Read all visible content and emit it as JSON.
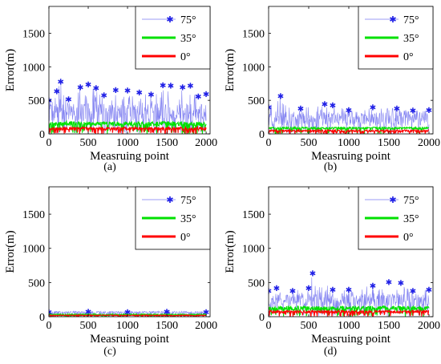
{
  "colors": {
    "series_75": "#1f1fe6",
    "series_35": "#00e000",
    "series_0": "#ff0000",
    "axis": "#000000",
    "legend_border": "#000000"
  },
  "chart_data": [
    {
      "type": "line",
      "panel_label": "(a)",
      "xlabel": "Measruing point",
      "ylabel": "Error(m)",
      "xlim": [
        0,
        2050
      ],
      "ylim": [
        0,
        1900
      ],
      "xticks": [
        0,
        500,
        1000,
        1500,
        2000
      ],
      "yticks": [
        0,
        500,
        1000,
        1500
      ],
      "legend": {
        "placement": "top-right",
        "entries": [
          "75°",
          "35°",
          "0°"
        ]
      },
      "series": [
        {
          "name": "75°",
          "marker": "star",
          "range": [
            0,
            800
          ],
          "typical": [
            180,
            450
          ],
          "x": [
            0,
            100,
            150,
            250,
            400,
            500,
            600,
            700,
            850,
            1000,
            1150,
            1300,
            1450,
            1550,
            1700,
            1800,
            1900,
            2000
          ],
          "y": [
            500,
            640,
            780,
            520,
            700,
            740,
            690,
            580,
            660,
            650,
            620,
            590,
            730,
            720,
            700,
            720,
            560,
            600
          ]
        },
        {
          "name": "35°",
          "range": [
            0,
            240
          ],
          "typical": [
            120,
            180
          ],
          "x": [
            0,
            250,
            500,
            750,
            1000,
            1250,
            1500,
            1750,
            2000
          ],
          "y": [
            140,
            200,
            160,
            170,
            150,
            165,
            190,
            160,
            155
          ]
        },
        {
          "name": "0°",
          "range": [
            0,
            120
          ],
          "typical": [
            50,
            100
          ],
          "x": [
            0,
            500,
            1000,
            1500,
            2000
          ],
          "y": [
            90,
            95,
            90,
            95,
            90
          ]
        }
      ]
    },
    {
      "type": "line",
      "panel_label": "(b)",
      "xlabel": "Measruing point",
      "ylabel": "Error(m)",
      "xlim": [
        0,
        2050
      ],
      "ylim": [
        0,
        1900
      ],
      "xticks": [
        0,
        500,
        1000,
        1500,
        2000
      ],
      "yticks": [
        0,
        500,
        1000,
        1500
      ],
      "legend": {
        "placement": "top-right",
        "entries": [
          "75°",
          "35°",
          "0°"
        ]
      },
      "series": [
        {
          "name": "75°",
          "marker": "star",
          "range": [
            0,
            580
          ],
          "typical": [
            120,
            330
          ],
          "x": [
            0,
            150,
            400,
            700,
            800,
            1000,
            1300,
            1600,
            1800,
            2000
          ],
          "y": [
            400,
            570,
            380,
            450,
            430,
            360,
            400,
            380,
            350,
            360
          ]
        },
        {
          "name": "35°",
          "range": [
            0,
            110
          ],
          "typical": [
            70,
            100
          ],
          "x": [
            0,
            500,
            1000,
            1500,
            2000
          ],
          "y": [
            90,
            95,
            85,
            90,
            90
          ]
        },
        {
          "name": "0°",
          "range": [
            0,
            70
          ],
          "typical": [
            30,
            60
          ],
          "x": [
            0,
            500,
            1000,
            1500,
            2000
          ],
          "y": [
            50,
            50,
            50,
            50,
            50
          ]
        }
      ]
    },
    {
      "type": "line",
      "panel_label": "(c)",
      "xlabel": "Measruing point",
      "ylabel": "Error(m)",
      "xlim": [
        0,
        2050
      ],
      "ylim": [
        0,
        1900
      ],
      "xticks": [
        0,
        500,
        1000,
        1500,
        2000
      ],
      "yticks": [
        0,
        500,
        1000,
        1500
      ],
      "legend": {
        "placement": "top-right",
        "entries": [
          "75°",
          "35°",
          "0°"
        ]
      },
      "series": [
        {
          "name": "75°",
          "marker": "star",
          "range": [
            0,
            100
          ],
          "typical": [
            40,
            80
          ],
          "x": [
            0,
            500,
            1000,
            1500,
            2000
          ],
          "y": [
            70,
            75,
            70,
            75,
            70
          ]
        },
        {
          "name": "35°",
          "range": [
            0,
            50
          ],
          "typical": [
            25,
            40
          ],
          "x": [
            0,
            500,
            1000,
            1500,
            2000
          ],
          "y": [
            35,
            35,
            35,
            35,
            35
          ]
        },
        {
          "name": "0°",
          "range": [
            0,
            30
          ],
          "typical": [
            15,
            25
          ],
          "x": [
            0,
            500,
            1000,
            1500,
            2000
          ],
          "y": [
            20,
            20,
            20,
            20,
            20
          ]
        }
      ]
    },
    {
      "type": "line",
      "panel_label": "(d)",
      "xlabel": "Measruing point",
      "ylabel": "Error(m)",
      "xlim": [
        0,
        2050
      ],
      "ylim": [
        0,
        1900
      ],
      "xticks": [
        0,
        500,
        1000,
        1500,
        2000
      ],
      "yticks": [
        0,
        500,
        1000,
        1500
      ],
      "legend": {
        "placement": "top-right",
        "entries": [
          "75°",
          "35°",
          "0°"
        ]
      },
      "series": [
        {
          "name": "75°",
          "marker": "star",
          "range": [
            0,
            650
          ],
          "typical": [
            150,
            330
          ],
          "x": [
            0,
            100,
            300,
            500,
            550,
            800,
            1000,
            1300,
            1500,
            1650,
            1800,
            2000
          ],
          "y": [
            380,
            420,
            380,
            420,
            640,
            400,
            400,
            460,
            510,
            500,
            380,
            400
          ]
        },
        {
          "name": "35°",
          "range": [
            0,
            180
          ],
          "typical": [
            90,
            150
          ],
          "x": [
            0,
            250,
            500,
            750,
            1000,
            1250,
            1500,
            1750,
            2000
          ],
          "y": [
            130,
            160,
            150,
            140,
            150,
            145,
            160,
            150,
            140
          ]
        },
        {
          "name": "0°",
          "range": [
            0,
            100
          ],
          "typical": [
            50,
            90
          ],
          "x": [
            0,
            500,
            1000,
            1500,
            2000
          ],
          "y": [
            80,
            80,
            80,
            80,
            80
          ]
        }
      ]
    }
  ]
}
